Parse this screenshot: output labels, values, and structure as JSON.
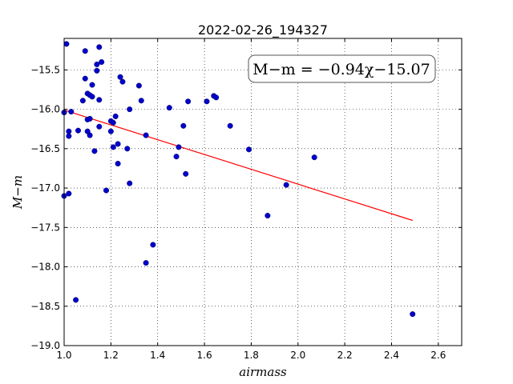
{
  "chart_data": {
    "type": "scatter",
    "title": "2022-02-26_194327",
    "xlabel": "airmass",
    "ylabel": "M−m",
    "xlim": [
      1.0,
      2.7
    ],
    "ylim": [
      -19.0,
      -15.1
    ],
    "y_inverted": true,
    "grid": true,
    "x_ticks": [
      "1.0",
      "1.2",
      "1.4",
      "1.6",
      "1.8",
      "2.0",
      "2.2",
      "2.4",
      "2.6"
    ],
    "y_ticks": [
      "−15.5",
      "−16.0",
      "−16.5",
      "−17.0",
      "−17.5",
      "−18.0",
      "−18.5",
      "−19.0"
    ],
    "annotation": "M−m = −0.94χ−15.07",
    "fit": {
      "slope": -0.94,
      "intercept": -15.07,
      "x_range": [
        1.0,
        2.49
      ],
      "color": "#ff0000"
    },
    "points_color": "#0000cc",
    "points": [
      [
        1.0,
        -16.04
      ],
      [
        1.0,
        -17.1
      ],
      [
        1.01,
        -15.17
      ],
      [
        1.02,
        -16.28
      ],
      [
        1.02,
        -16.34
      ],
      [
        1.02,
        -17.07
      ],
      [
        1.03,
        -16.03
      ],
      [
        1.05,
        -18.42
      ],
      [
        1.06,
        -16.27
      ],
      [
        1.08,
        -15.89
      ],
      [
        1.09,
        -15.26
      ],
      [
        1.09,
        -15.61
      ],
      [
        1.1,
        -16.13
      ],
      [
        1.1,
        -15.8
      ],
      [
        1.1,
        -16.28
      ],
      [
        1.11,
        -16.12
      ],
      [
        1.11,
        -16.33
      ],
      [
        1.11,
        -15.82
      ],
      [
        1.12,
        -15.69
      ],
      [
        1.12,
        -15.84
      ],
      [
        1.13,
        -16.53
      ],
      [
        1.14,
        -15.43
      ],
      [
        1.14,
        -15.51
      ],
      [
        1.15,
        -15.21
      ],
      [
        1.15,
        -15.88
      ],
      [
        1.15,
        -16.22
      ],
      [
        1.16,
        -15.4
      ],
      [
        1.18,
        -17.03
      ],
      [
        1.2,
        -16.28
      ],
      [
        1.2,
        -16.15
      ],
      [
        1.21,
        -16.17
      ],
      [
        1.21,
        -16.48
      ],
      [
        1.22,
        -16.09
      ],
      [
        1.23,
        -16.69
      ],
      [
        1.23,
        -16.44
      ],
      [
        1.24,
        -15.59
      ],
      [
        1.25,
        -15.65
      ],
      [
        1.27,
        -16.5
      ],
      [
        1.28,
        -16.94
      ],
      [
        1.28,
        -16.0
      ],
      [
        1.32,
        -15.7
      ],
      [
        1.33,
        -15.89
      ],
      [
        1.35,
        -16.33
      ],
      [
        1.35,
        -17.95
      ],
      [
        1.38,
        -17.72
      ],
      [
        1.45,
        -15.98
      ],
      [
        1.48,
        -16.6
      ],
      [
        1.49,
        -16.48
      ],
      [
        1.51,
        -16.21
      ],
      [
        1.52,
        -16.82
      ],
      [
        1.53,
        -15.9
      ],
      [
        1.61,
        -15.9
      ],
      [
        1.64,
        -15.83
      ],
      [
        1.65,
        -15.85
      ],
      [
        1.71,
        -16.21
      ],
      [
        1.79,
        -16.51
      ],
      [
        1.87,
        -17.35
      ],
      [
        1.95,
        -16.96
      ],
      [
        2.07,
        -16.61
      ],
      [
        2.49,
        -18.6
      ]
    ]
  }
}
